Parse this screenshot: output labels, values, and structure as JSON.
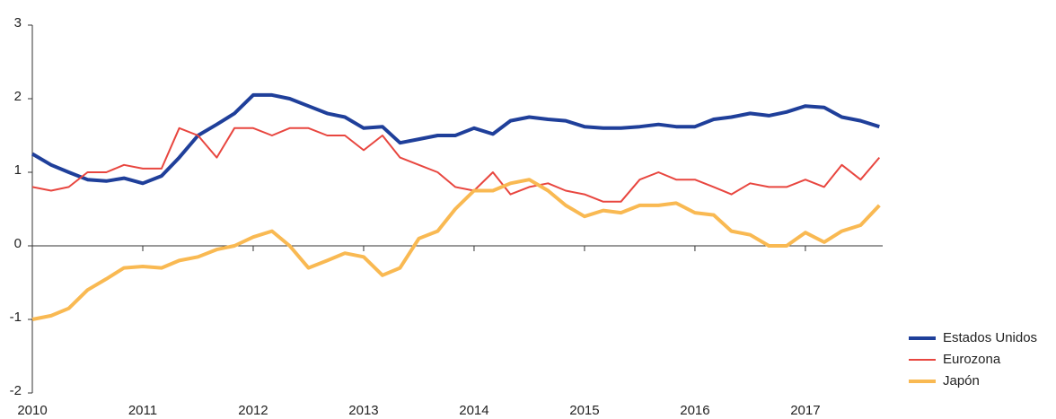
{
  "chart_data": {
    "type": "line",
    "x": [
      2010,
      2010.17,
      2010.33,
      2010.5,
      2010.67,
      2010.83,
      2011,
      2011.17,
      2011.33,
      2011.5,
      2011.67,
      2011.83,
      2012,
      2012.17,
      2012.33,
      2012.5,
      2012.67,
      2012.83,
      2013,
      2013.17,
      2013.33,
      2013.5,
      2013.67,
      2013.83,
      2014,
      2014.17,
      2014.33,
      2014.5,
      2014.67,
      2014.83,
      2015,
      2015.17,
      2015.33,
      2015.5,
      2015.67,
      2015.83,
      2016,
      2016.17,
      2016.33,
      2016.5,
      2016.67,
      2016.83,
      2017,
      2017.17,
      2017.33,
      2017.5,
      2017.67
    ],
    "series": [
      {
        "name": "Estados Unidos",
        "color": "#1f3f9a",
        "width": 4,
        "values": [
          1.25,
          1.1,
          1.0,
          0.9,
          0.88,
          0.92,
          0.85,
          0.95,
          1.2,
          1.5,
          1.65,
          1.8,
          2.05,
          2.05,
          2.0,
          1.9,
          1.8,
          1.75,
          1.6,
          1.62,
          1.4,
          1.45,
          1.5,
          1.5,
          1.6,
          1.52,
          1.7,
          1.75,
          1.72,
          1.7,
          1.62,
          1.6,
          1.6,
          1.62,
          1.65,
          1.62,
          1.62,
          1.72,
          1.75,
          1.8,
          1.77,
          1.82,
          1.9,
          1.88,
          1.75,
          1.7,
          1.62
        ]
      },
      {
        "name": "Eurozona",
        "color": "#e8463f",
        "width": 2,
        "values": [
          0.8,
          0.75,
          0.8,
          1.0,
          1.0,
          1.1,
          1.05,
          1.05,
          1.6,
          1.5,
          1.2,
          1.6,
          1.6,
          1.5,
          1.6,
          1.6,
          1.5,
          1.5,
          1.3,
          1.5,
          1.2,
          1.1,
          1.0,
          0.8,
          0.75,
          1.0,
          0.7,
          0.8,
          0.85,
          0.75,
          0.7,
          0.6,
          0.6,
          0.9,
          1.0,
          0.9,
          0.9,
          0.8,
          0.7,
          0.85,
          0.8,
          0.8,
          0.9,
          0.8,
          1.1,
          0.9,
          1.2
        ]
      },
      {
        "name": "Japón",
        "color": "#f9b952",
        "width": 4,
        "values": [
          -1.0,
          -0.95,
          -0.85,
          -0.6,
          -0.45,
          -0.3,
          -0.28,
          -0.3,
          -0.2,
          -0.15,
          -0.05,
          0.0,
          0.12,
          0.2,
          0.0,
          -0.3,
          -0.2,
          -0.1,
          -0.15,
          -0.4,
          -0.3,
          0.1,
          0.2,
          0.5,
          0.75,
          0.75,
          0.85,
          0.9,
          0.75,
          0.55,
          0.4,
          0.48,
          0.45,
          0.55,
          0.55,
          0.58,
          0.45,
          0.42,
          0.2,
          0.15,
          0.0,
          0.0,
          0.18,
          0.05,
          0.2,
          0.28,
          0.55
        ]
      }
    ],
    "xlim": [
      2010,
      2017.7
    ],
    "xticks": [
      2010,
      2011,
      2012,
      2013,
      2014,
      2015,
      2016,
      2017
    ],
    "ylim": [
      -2,
      3
    ],
    "yticks": [
      -2,
      -1,
      0,
      1,
      2,
      3
    ],
    "grid": false,
    "legend": "bottom-right"
  }
}
